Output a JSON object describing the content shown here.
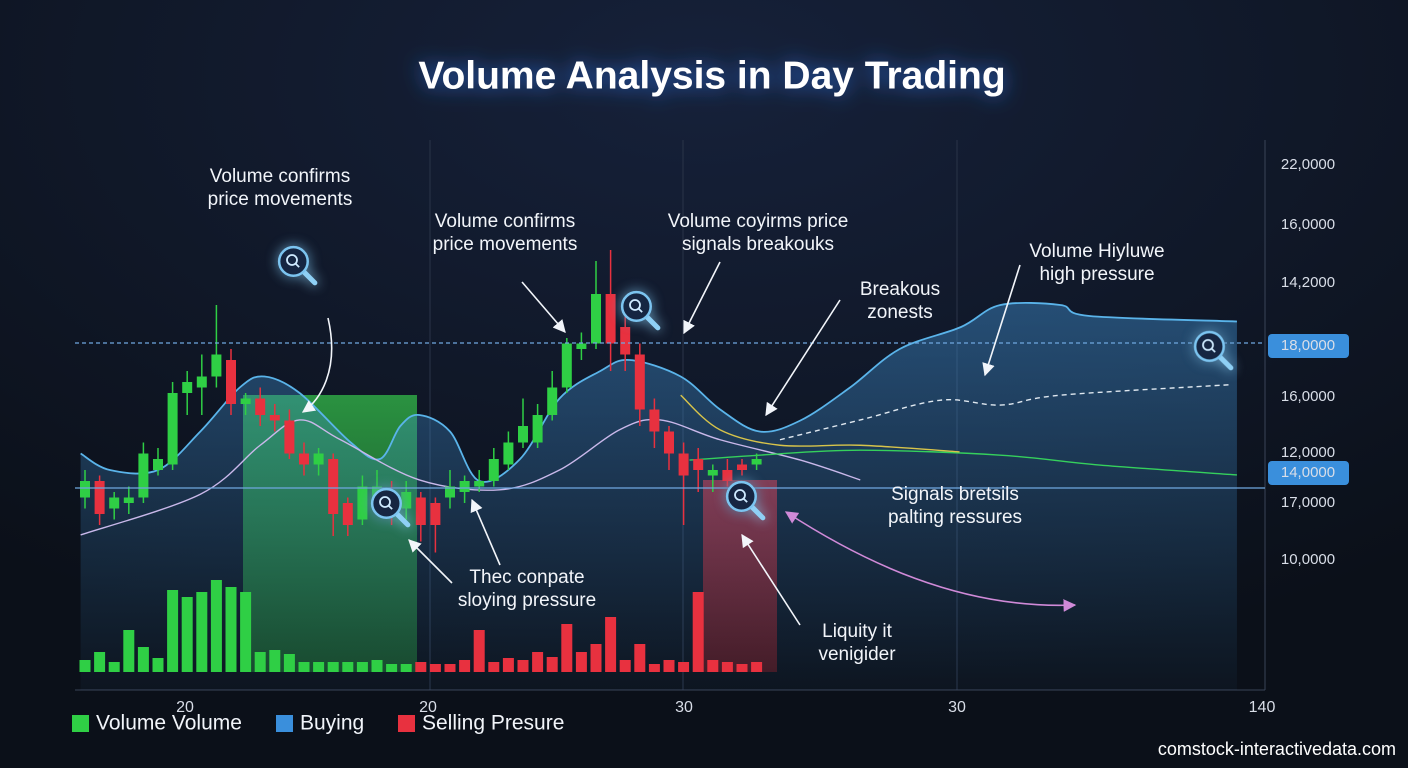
{
  "chart_data": {
    "type": "candlestick",
    "title": "Volume Analysis in Day Trading",
    "xlim": [
      -0.5,
      79
    ],
    "ylim": [
      0,
      100
    ],
    "volume_ylim": [
      0,
      100
    ],
    "up_color": "#2fcf45",
    "down_color": "#e8313f",
    "open": [
      35,
      38,
      33,
      34,
      35,
      40,
      41,
      54,
      55,
      57,
      60,
      52,
      53,
      50,
      49,
      43,
      41,
      42,
      34,
      31,
      35,
      36,
      33,
      35,
      34,
      35,
      36,
      37,
      38,
      41,
      45,
      45,
      50,
      55,
      62,
      63,
      72,
      66,
      61,
      51,
      47,
      43,
      42,
      39,
      40,
      41,
      41
    ],
    "high": [
      40,
      39,
      36,
      37,
      45,
      44,
      56,
      58,
      61,
      70,
      62,
      54,
      55,
      52,
      51,
      45,
      44,
      43,
      35,
      39,
      40,
      38,
      38,
      36,
      35,
      40,
      39,
      40,
      44,
      47,
      53,
      52,
      58,
      64,
      65,
      78,
      80,
      68,
      63,
      53,
      48,
      45,
      44,
      41,
      42,
      42,
      43
    ],
    "low": [
      33,
      30,
      31,
      32,
      34,
      39,
      40,
      50,
      50,
      55,
      50,
      50,
      48,
      47,
      42,
      39,
      39,
      28,
      28,
      30,
      33,
      30,
      31,
      27,
      25,
      33,
      34,
      36,
      37,
      40,
      44,
      44,
      49,
      54,
      60,
      62,
      58,
      58,
      48,
      44,
      40,
      30,
      36,
      36,
      37,
      39,
      40
    ],
    "close": [
      38,
      32,
      35,
      35,
      43,
      42,
      54,
      56,
      57,
      61,
      52,
      53,
      50,
      49,
      43,
      41,
      43,
      32,
      30,
      37,
      37,
      34,
      36,
      30,
      30,
      37,
      38,
      38,
      42,
      45,
      48,
      50,
      55,
      63,
      63,
      72,
      63,
      61,
      51,
      47,
      43,
      39,
      40,
      40,
      38,
      40,
      42
    ],
    "volume": [
      12,
      20,
      10,
      42,
      25,
      14,
      82,
      75,
      80,
      92,
      85,
      80,
      20,
      22,
      18,
      10,
      10,
      10,
      10,
      10,
      12,
      8,
      8,
      10,
      8,
      8,
      12,
      42,
      10,
      14,
      12,
      20,
      15,
      48,
      20,
      28,
      55,
      12,
      28,
      8,
      12,
      10,
      80,
      12,
      10,
      8,
      10
    ],
    "volume_colors": [
      "#2fcf45",
      "#2fcf45",
      "#2fcf45",
      "#2fcf45",
      "#2fcf45",
      "#2fcf45",
      "#2fcf45",
      "#2fcf45",
      "#2fcf45",
      "#2fcf45",
      "#2fcf45",
      "#2fcf45",
      "#2fcf45",
      "#2fcf45",
      "#2fcf45",
      "#2fcf45",
      "#2fcf45",
      "#2fcf45",
      "#2fcf45",
      "#2fcf45",
      "#2fcf45",
      "#2fcf45",
      "#2fcf45",
      "#e8313f",
      "#e8313f",
      "#e8313f",
      "#e8313f",
      "#e8313f",
      "#e8313f",
      "#e8313f",
      "#e8313f",
      "#e8313f",
      "#e8313f",
      "#e8313f",
      "#e8313f",
      "#e8313f",
      "#e8313f",
      "#e8313f",
      "#e8313f",
      "#e8313f",
      "#e8313f",
      "#e8313f",
      "#e8313f",
      "#e8313f",
      "#e8313f",
      "#e8313f",
      "#e8313f"
    ],
    "overlays": [
      {
        "type": "area",
        "color": "#5ab4ea",
        "x": [
          -0.3,
          1.7,
          5,
          7.9,
          10.6,
          12.3,
          14.7,
          18.2,
          20.2,
          21.6,
          22.9,
          25,
          27,
          29.8,
          32.5,
          35.3,
          37.3,
          40.8,
          43.5,
          46.2,
          49,
          52.4,
          55.8,
          60,
          62.7,
          66.8,
          68.8,
          78.9
        ],
        "values": [
          43,
          40,
          40,
          47,
          55,
          57,
          54,
          45,
          42,
          48,
          50,
          47,
          38,
          42,
          53,
          58,
          60,
          57,
          51,
          47,
          49,
          55,
          62,
          66,
          70,
          70,
          68,
          67
        ]
      },
      {
        "type": "line",
        "color": "#c9b8ea",
        "x": [
          -0.3,
          7.9,
          12,
          14.7,
          17.5,
          22.9,
          28.4,
          32.5,
          36.6,
          39.4,
          43.5,
          49,
          53.1
        ],
        "values": [
          28.2,
          35.6,
          44.5,
          49.1,
          45.5,
          38.2,
          36.4,
          40,
          47.3,
          49.1,
          45.5,
          41.8,
          38.2
        ]
      },
      {
        "type": "line",
        "color": "#35d05c",
        "x": [
          41.4,
          46.2,
          53.1,
          62.7,
          69.5,
          78.9
        ],
        "values": [
          41.8,
          42.7,
          43.6,
          42.7,
          40.9,
          39.1
        ]
      },
      {
        "type": "line",
        "color": "#d8c44a",
        "x": [
          40.8,
          43.5,
          47.6,
          53.1,
          59.9
        ],
        "values": [
          53.6,
          47.3,
          44.5,
          44.5,
          43.3
        ]
      },
      {
        "type": "line",
        "color": "#dfe8f0",
        "dashed": true,
        "x": [
          47.6,
          53.1,
          58.6,
          62.7,
          66.8,
          78.4
        ],
        "values": [
          45.5,
          49.1,
          52.7,
          51.8,
          53.6,
          55.5
        ]
      }
    ],
    "x_labels": [
      "20",
      "20",
      "30",
      "30",
      "140"
    ],
    "right_labels": [
      {
        "text": "22,0000"
      },
      {
        "text": "16,0000"
      },
      {
        "text": "14,2000"
      },
      {
        "text": "18,0000",
        "highlight": true
      },
      {
        "text": "16,0000"
      },
      {
        "text": "12,0000"
      },
      {
        "text": "14,0000",
        "highlight": true
      },
      {
        "text": "17,0000"
      },
      {
        "text": "10,0000"
      }
    ],
    "annotations": [
      [
        "Volume confirms",
        "price movements"
      ],
      [
        "Volume confirms",
        "price movements"
      ],
      [
        "Volume coyirms price",
        "signals breakouks"
      ],
      [
        "Breakous",
        "zonests"
      ],
      [
        "Volume Hiyluwe",
        "high pressure"
      ],
      [
        "Signals bretsils",
        "palting ressures"
      ],
      [
        "Thec conpate",
        "sloying pressure"
      ],
      [
        "Liquity it",
        "venigider"
      ]
    ],
    "legend": [
      {
        "name": "Volume Volume",
        "color": "#2fcf45"
      },
      {
        "name": "Buying",
        "color": "#3a8fdc"
      },
      {
        "name": "Selling Presure",
        "color": "#e8313f"
      }
    ],
    "watermark": "comstock-interactivedata.com"
  }
}
